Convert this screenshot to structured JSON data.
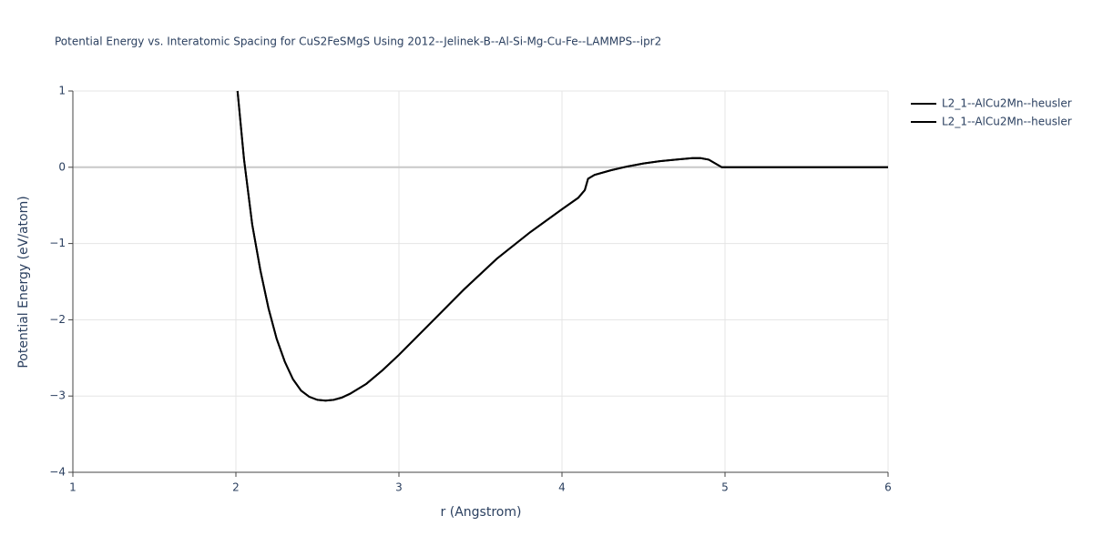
{
  "chart_data": {
    "type": "line",
    "title": "Potential Energy vs. Interatomic Spacing for CuS2FeSMgS Using 2012--Jelinek-B--Al-Si-Mg-Cu-Fe--LAMMPS--ipr2",
    "x_label": "r (Angstrom)",
    "y_label": "Potential Energy (eV/atom)",
    "xlim": [
      1,
      6
    ],
    "ylim": [
      -4,
      1
    ],
    "xticks": [
      1,
      2,
      3,
      4,
      5,
      6
    ],
    "yticks": [
      {
        "value": -4,
        "label": "−4"
      },
      {
        "value": -3,
        "label": "−3"
      },
      {
        "value": -2,
        "label": "−2"
      },
      {
        "value": -1,
        "label": "−1"
      },
      0,
      1
    ],
    "grid": true,
    "x": [
      2.01,
      2.05,
      2.1,
      2.15,
      2.2,
      2.25,
      2.3,
      2.35,
      2.4,
      2.45,
      2.5,
      2.55,
      2.6,
      2.65,
      2.7,
      2.8,
      2.9,
      3.0,
      3.2,
      3.4,
      3.6,
      3.8,
      4.0,
      4.1,
      4.14,
      4.16,
      4.2,
      4.3,
      4.4,
      4.5,
      4.6,
      4.7,
      4.8,
      4.85,
      4.9,
      4.98,
      5.5,
      6.0
    ],
    "series": [
      {
        "name": "L2_1--AlCu2Mn--heusler",
        "color": "#000000",
        "values": [
          1,
          0.1,
          -0.75,
          -1.35,
          -1.85,
          -2.25,
          -2.55,
          -2.78,
          -2.93,
          -3.01,
          -3.05,
          -3.06,
          -3.05,
          -3.02,
          -2.97,
          -2.84,
          -2.66,
          -2.46,
          -2.03,
          -1.6,
          -1.2,
          -0.86,
          -0.55,
          -0.4,
          -0.3,
          -0.15,
          -0.1,
          -0.04,
          0.01,
          0.05,
          0.08,
          0.1,
          0.12,
          0.12,
          0.1,
          0,
          0,
          0
        ]
      },
      {
        "name": "L2_1--AlCu2Mn--heusler",
        "color": "#000000",
        "values": [
          1,
          0.1,
          -0.75,
          -1.35,
          -1.85,
          -2.25,
          -2.55,
          -2.78,
          -2.93,
          -3.01,
          -3.05,
          -3.06,
          -3.05,
          -3.02,
          -2.97,
          -2.84,
          -2.66,
          -2.46,
          -2.03,
          -1.6,
          -1.2,
          -0.86,
          -0.55,
          -0.4,
          -0.3,
          -0.15,
          -0.1,
          -0.04,
          0.01,
          0.05,
          0.08,
          0.1,
          0.12,
          0.12,
          0.1,
          0,
          0,
          0
        ]
      }
    ]
  }
}
